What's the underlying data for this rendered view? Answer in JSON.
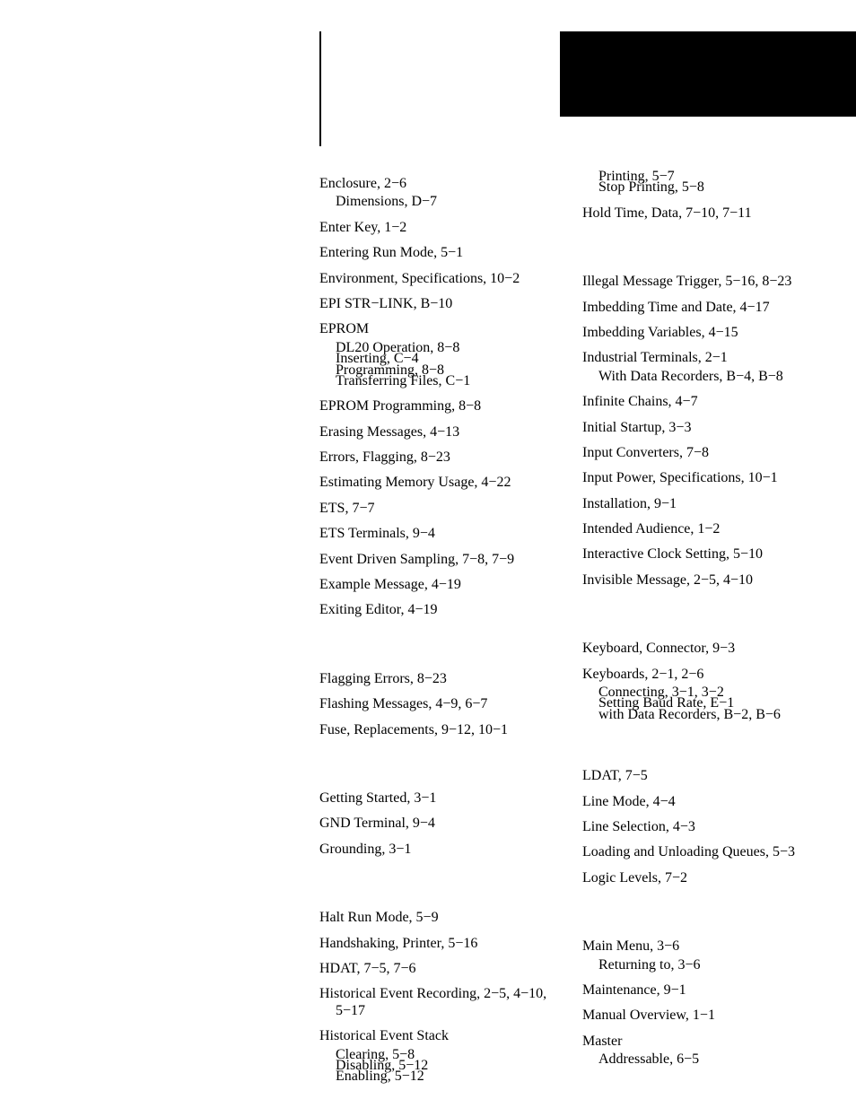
{
  "col1": {
    "E": [
      {
        "t": "entry",
        "text": "Enclosure, 2−6"
      },
      {
        "t": "sub",
        "text": "Dimensions, D−7"
      },
      {
        "t": "entry",
        "text": "Enter Key, 1−2"
      },
      {
        "t": "entry",
        "text": "Entering Run Mode, 5−1"
      },
      {
        "t": "entry",
        "text": "Environment, Specifications, 10−2"
      },
      {
        "t": "entry",
        "text": "EPI STR−LINK, B−10"
      },
      {
        "t": "entry",
        "text": "EPROM"
      },
      {
        "t": "sub",
        "text": "DL20 Operation, 8−8"
      },
      {
        "t": "sub",
        "text": "Inserting, C−4"
      },
      {
        "t": "sub",
        "text": "Programming, 8−8"
      },
      {
        "t": "sub",
        "text": "Transferring Files, C−1"
      },
      {
        "t": "entry",
        "text": "EPROM Programming, 8−8"
      },
      {
        "t": "entry",
        "text": "Erasing Messages, 4−13"
      },
      {
        "t": "entry",
        "text": "Errors, Flagging, 8−23"
      },
      {
        "t": "entry",
        "text": "Estimating Memory Usage, 4−22"
      },
      {
        "t": "entry",
        "text": "ETS, 7−7"
      },
      {
        "t": "entry",
        "text": "ETS Terminals, 9−4"
      },
      {
        "t": "entry",
        "text": "Event Driven Sampling, 7−8, 7−9"
      },
      {
        "t": "entry",
        "text": "Example Message, 4−19"
      },
      {
        "t": "entry",
        "text": "Exiting Editor, 4−19"
      }
    ],
    "F": [
      {
        "t": "entry",
        "text": "Flagging Errors, 8−23"
      },
      {
        "t": "entry",
        "text": "Flashing Messages, 4−9, 6−7"
      },
      {
        "t": "entry",
        "text": "Fuse, Replacements, 9−12, 10−1"
      }
    ],
    "G": [
      {
        "t": "entry",
        "text": "Getting Started, 3−1"
      },
      {
        "t": "entry",
        "text": "GND Terminal, 9−4"
      },
      {
        "t": "entry",
        "text": "Grounding, 3−1"
      }
    ],
    "H": [
      {
        "t": "entry",
        "text": "Halt Run Mode, 5−9"
      },
      {
        "t": "entry",
        "text": "Handshaking, Printer, 5−16"
      },
      {
        "t": "entry",
        "text": "HDAT, 7−5, 7−6"
      },
      {
        "t": "entry",
        "text": "Historical Event Recording, 2−5, 4−10, 5−17"
      },
      {
        "t": "entry",
        "text": "Historical Event Stack"
      },
      {
        "t": "sub",
        "text": "Clearing, 5−8"
      },
      {
        "t": "sub",
        "text": "Disabling, 5−12"
      },
      {
        "t": "sub",
        "text": "Enabling, 5−12"
      }
    ]
  },
  "col2": {
    "Hcont": [
      {
        "t": "sub",
        "text": "Printing, 5−7"
      },
      {
        "t": "sub",
        "text": "Stop Printing, 5−8"
      },
      {
        "t": "entry",
        "text": "Hold Time, Data, 7−10, 7−11"
      }
    ],
    "I": [
      {
        "t": "entry",
        "text": "Illegal Message Trigger, 5−16, 8−23"
      },
      {
        "t": "entry",
        "text": "Imbedding Time and Date, 4−17"
      },
      {
        "t": "entry",
        "text": "Imbedding Variables, 4−15"
      },
      {
        "t": "entry",
        "text": "Industrial Terminals, 2−1"
      },
      {
        "t": "sub",
        "text": "With Data Recorders, B−4, B−8"
      },
      {
        "t": "entry",
        "text": "Infinite Chains, 4−7"
      },
      {
        "t": "entry",
        "text": "Initial Startup, 3−3"
      },
      {
        "t": "entry",
        "text": "Input Converters, 7−8"
      },
      {
        "t": "entry",
        "text": "Input Power, Specifications, 10−1"
      },
      {
        "t": "entry",
        "text": "Installation, 9−1"
      },
      {
        "t": "entry",
        "text": "Intended Audience, 1−2"
      },
      {
        "t": "entry",
        "text": "Interactive Clock Setting, 5−10"
      },
      {
        "t": "entry",
        "text": "Invisible Message, 2−5, 4−10"
      }
    ],
    "K": [
      {
        "t": "entry",
        "text": "Keyboard, Connector, 9−3"
      },
      {
        "t": "entry",
        "text": "Keyboards, 2−1, 2−6"
      },
      {
        "t": "sub",
        "text": "Connecting, 3−1, 3−2"
      },
      {
        "t": "sub",
        "text": "Setting Baud Rate, E−1"
      },
      {
        "t": "sub",
        "text": "with Data Recorders, B−2, B−6"
      }
    ],
    "L": [
      {
        "t": "entry",
        "text": "LDAT, 7−5"
      },
      {
        "t": "entry",
        "text": "Line Mode, 4−4"
      },
      {
        "t": "entry",
        "text": "Line Selection, 4−3"
      },
      {
        "t": "entry",
        "text": "Loading and Unloading Queues, 5−3"
      },
      {
        "t": "entry",
        "text": "Logic Levels, 7−2"
      }
    ],
    "M": [
      {
        "t": "entry",
        "text": "Main Menu, 3−6"
      },
      {
        "t": "sub",
        "text": "Returning to, 3−6"
      },
      {
        "t": "entry",
        "text": "Maintenance, 9−1"
      },
      {
        "t": "entry",
        "text": "Manual Overview, 1−1"
      },
      {
        "t": "entry",
        "text": "Master"
      },
      {
        "t": "sub",
        "text": "Addressable, 6−5"
      }
    ]
  }
}
